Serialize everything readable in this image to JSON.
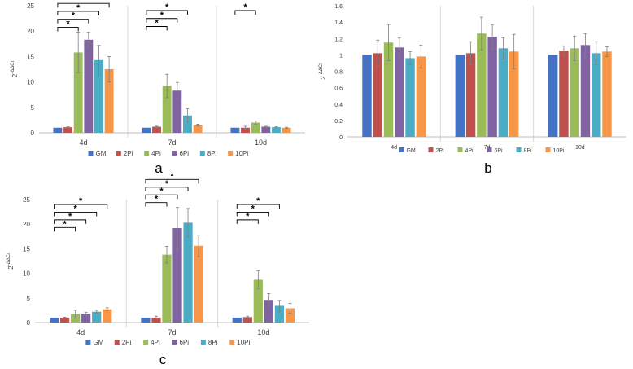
{
  "colors": {
    "GM": "#4472C4",
    "2Pi": "#C0504D",
    "4Pi": "#9BBB59",
    "6Pi": "#8064A2",
    "8Pi": "#4BACC6",
    "10Pi": "#F79646",
    "axis": "#bfbfbf",
    "text": "#404040",
    "bracket": "#000000",
    "error": "#7f7f7f"
  },
  "chart_data": [
    {
      "panel_label": "a",
      "type": "bar",
      "ylabel": "2^-ΔΔCt",
      "ylabel_base": "2",
      "ylabel_exp": "-ΔΔCt",
      "ylim": [
        0,
        25
      ],
      "yticks": [
        0,
        5,
        10,
        15,
        20,
        25
      ],
      "categories": [
        "4d",
        "7d",
        "10d"
      ],
      "series": [
        {
          "name": "GM",
          "values": [
            1.0,
            1.0,
            1.0
          ],
          "errors": [
            0,
            0,
            0
          ]
        },
        {
          "name": "2Pi",
          "values": [
            1.1,
            1.2,
            1.0
          ],
          "errors": [
            0.1,
            0.1,
            0.3
          ]
        },
        {
          "name": "4Pi",
          "values": [
            15.8,
            9.2,
            2.0
          ],
          "errors": [
            4.0,
            2.3,
            0.3
          ]
        },
        {
          "name": "6Pi",
          "values": [
            18.3,
            8.3,
            1.2
          ],
          "errors": [
            1.5,
            1.6,
            0.1
          ]
        },
        {
          "name": "8Pi",
          "values": [
            14.3,
            3.4,
            1.1
          ],
          "errors": [
            2.9,
            1.3,
            0.1
          ]
        },
        {
          "name": "10Pi",
          "values": [
            12.5,
            1.5,
            1.0
          ],
          "errors": [
            2.5,
            0.2,
            0.1
          ]
        }
      ],
      "significance": [
        {
          "category": 0,
          "to_series": 2,
          "level": 1,
          "label": "*"
        },
        {
          "category": 0,
          "to_series": 3,
          "level": 2,
          "label": "*"
        },
        {
          "category": 0,
          "to_series": 4,
          "level": 3,
          "label": "*"
        },
        {
          "category": 0,
          "to_series": 5,
          "level": 4,
          "label": "*"
        },
        {
          "category": 1,
          "to_series": 2,
          "level": 1,
          "label": "*"
        },
        {
          "category": 1,
          "to_series": 3,
          "level": 2,
          "label": "*"
        },
        {
          "category": 1,
          "to_series": 4,
          "level": 3,
          "label": "*"
        },
        {
          "category": 2,
          "to_series": 2,
          "level": 1,
          "label": "*"
        }
      ]
    },
    {
      "panel_label": "b",
      "type": "bar",
      "ylabel": "2^-ΔΔCt",
      "ylabel_base": "2",
      "ylabel_exp": "-ΔΔCt",
      "ylim": [
        0,
        1.6
      ],
      "yticks": [
        0,
        0.2,
        0.4,
        0.6,
        0.8,
        1,
        1.2,
        1.4,
        1.6
      ],
      "categories": [
        "4d",
        "7d",
        "10d"
      ],
      "series": [
        {
          "name": "GM",
          "values": [
            1.0,
            1.0,
            1.0
          ],
          "errors": [
            0,
            0,
            0
          ]
        },
        {
          "name": "2Pi",
          "values": [
            1.02,
            1.02,
            1.05
          ],
          "errors": [
            0.16,
            0.14,
            0.06
          ]
        },
        {
          "name": "4Pi",
          "values": [
            1.15,
            1.26,
            1.08
          ],
          "errors": [
            0.22,
            0.2,
            0.15
          ]
        },
        {
          "name": "6Pi",
          "values": [
            1.09,
            1.22,
            1.12
          ],
          "errors": [
            0.12,
            0.15,
            0.14
          ]
        },
        {
          "name": "8Pi",
          "values": [
            0.96,
            1.08,
            1.02
          ],
          "errors": [
            0.08,
            0.13,
            0.14
          ]
        },
        {
          "name": "10Pi",
          "values": [
            0.98,
            1.04,
            1.04
          ],
          "errors": [
            0.14,
            0.21,
            0.06
          ]
        }
      ],
      "significance": []
    },
    {
      "panel_label": "c",
      "type": "bar",
      "ylabel": "2^-ΔΔCt",
      "ylabel_base": "2",
      "ylabel_exp": "-ΔΔCt",
      "ylim": [
        0,
        25
      ],
      "yticks": [
        0,
        5,
        10,
        15,
        20,
        25
      ],
      "categories": [
        "4d",
        "7d",
        "10d"
      ],
      "series": [
        {
          "name": "GM",
          "values": [
            1.0,
            1.0,
            1.0
          ],
          "errors": [
            0,
            0,
            0
          ]
        },
        {
          "name": "2Pi",
          "values": [
            1.0,
            1.0,
            1.1
          ],
          "errors": [
            0.1,
            0.3,
            0.2
          ]
        },
        {
          "name": "4Pi",
          "values": [
            1.7,
            13.8,
            8.7
          ],
          "errors": [
            0.8,
            1.7,
            1.8
          ]
        },
        {
          "name": "6Pi",
          "values": [
            1.8,
            19.2,
            4.6
          ],
          "errors": [
            0.3,
            4.2,
            1.3
          ]
        },
        {
          "name": "8Pi",
          "values": [
            2.2,
            20.3,
            3.4
          ],
          "errors": [
            0.3,
            2.9,
            1.1
          ]
        },
        {
          "name": "10Pi",
          "values": [
            2.7,
            15.6,
            2.9
          ],
          "errors": [
            0.3,
            2.2,
            1.0
          ]
        }
      ],
      "significance": [
        {
          "category": 0,
          "to_series": 2,
          "level": 1,
          "label": "*"
        },
        {
          "category": 0,
          "to_series": 3,
          "level": 2,
          "label": "*"
        },
        {
          "category": 0,
          "to_series": 4,
          "level": 3,
          "label": "*"
        },
        {
          "category": 0,
          "to_series": 5,
          "level": 4,
          "label": "*"
        },
        {
          "category": 1,
          "to_series": 2,
          "level": 1,
          "label": "*"
        },
        {
          "category": 1,
          "to_series": 3,
          "level": 2,
          "label": "*"
        },
        {
          "category": 1,
          "to_series": 4,
          "level": 3,
          "label": "*"
        },
        {
          "category": 1,
          "to_series": 5,
          "level": 4,
          "label": "*"
        },
        {
          "category": 2,
          "to_series": 2,
          "level": 1,
          "label": "*"
        },
        {
          "category": 2,
          "to_series": 3,
          "level": 2,
          "label": "*"
        },
        {
          "category": 2,
          "to_series": 4,
          "level": 3,
          "label": "*"
        }
      ]
    }
  ]
}
